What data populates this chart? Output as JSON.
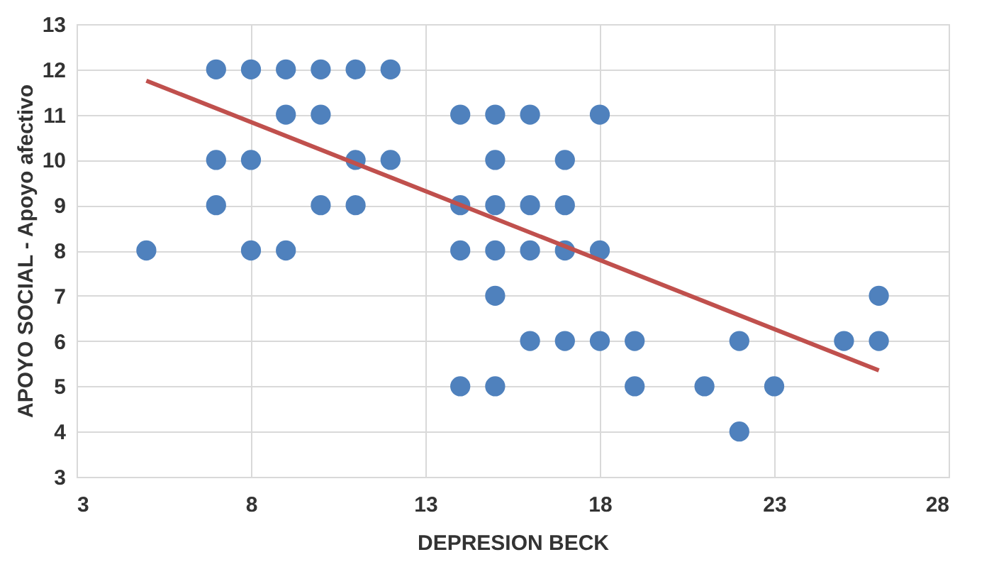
{
  "chart_data": {
    "type": "scatter",
    "xlabel": "DEPRESION BECK",
    "ylabel": "APOYO SOCIAL - Apoyo afectivo",
    "xlim": [
      3,
      28
    ],
    "xticks": [
      3,
      8,
      13,
      18,
      23,
      28
    ],
    "ylim": [
      3,
      13
    ],
    "yticks": [
      3,
      4,
      5,
      6,
      7,
      8,
      9,
      10,
      11,
      12,
      13
    ],
    "grid": true,
    "series": [
      {
        "color": "#4f81bd",
        "marker": "circle",
        "x": [
          7,
          8,
          9,
          10,
          11,
          12,
          9,
          10,
          14,
          15,
          16,
          18,
          7,
          8,
          11,
          12,
          15,
          17,
          7,
          10,
          11,
          14,
          15,
          16,
          17,
          5,
          8,
          9,
          14,
          15,
          16,
          17,
          18,
          15,
          26,
          16,
          17,
          18,
          19,
          22,
          25,
          26,
          14,
          15,
          19,
          21,
          23,
          22
        ],
        "values": [
          12,
          12,
          12,
          12,
          12,
          12,
          11,
          11,
          11,
          11,
          11,
          11,
          10,
          10,
          10,
          10,
          10,
          10,
          9,
          9,
          9,
          9,
          9,
          9,
          9,
          8,
          8,
          8,
          8,
          8,
          8,
          8,
          8,
          7,
          7,
          6,
          6,
          6,
          6,
          6,
          6,
          6,
          5,
          5,
          5,
          5,
          5,
          4
        ]
      },
      {
        "type": "line",
        "color": "#c0504d",
        "x": [
          5,
          26
        ],
        "values": [
          11.75,
          5.35
        ]
      }
    ]
  }
}
